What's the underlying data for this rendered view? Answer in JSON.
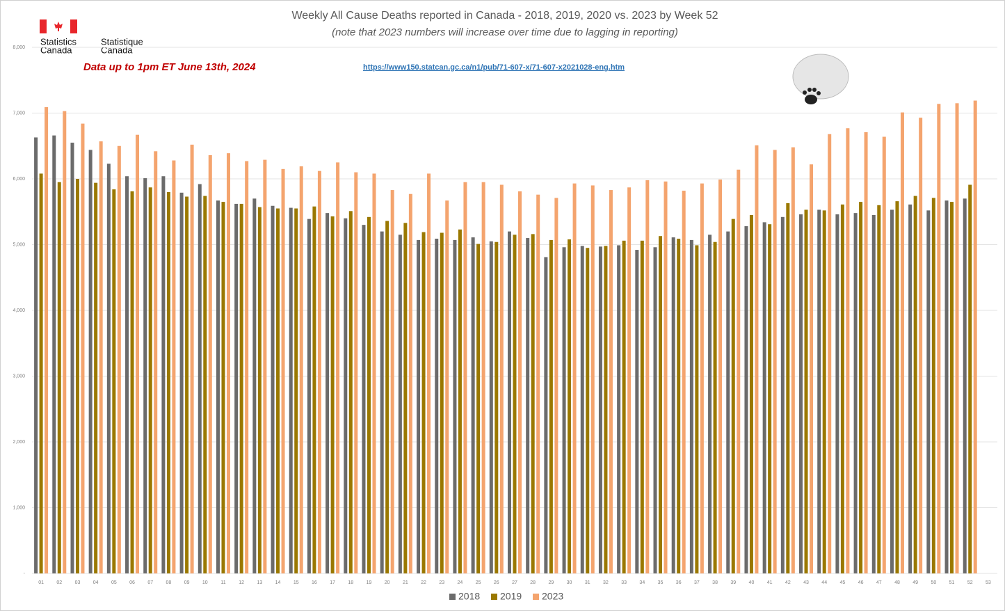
{
  "chart_data": {
    "type": "bar",
    "title": "Weekly All Cause Deaths reported in Canada - 2018, 2019, 2020 vs. 2023 by Week 52",
    "subtitle": "(note that 2023 numbers will increase over time due to lagging in reporting)",
    "annotation": "Data up to 1pm ET June 13th, 2024",
    "source_url": "https://www150.statcan.gc.ca/n1/pub/71-607-x/71-607-x2021028-eng.htm",
    "logo_text": [
      "Statistics",
      "Canada",
      "Statistique",
      "Canada"
    ],
    "categories": [
      "01",
      "02",
      "03",
      "04",
      "05",
      "06",
      "07",
      "08",
      "09",
      "10",
      "11",
      "12",
      "13",
      "14",
      "15",
      "16",
      "17",
      "18",
      "19",
      "20",
      "21",
      "22",
      "23",
      "24",
      "25",
      "26",
      "27",
      "28",
      "29",
      "30",
      "31",
      "32",
      "33",
      "34",
      "35",
      "36",
      "37",
      "38",
      "39",
      "40",
      "41",
      "42",
      "43",
      "44",
      "45",
      "46",
      "47",
      "48",
      "49",
      "50",
      "51",
      "52",
      "53"
    ],
    "series": [
      {
        "name": "2018",
        "color": "#6b6b6b",
        "values": [
          6630,
          6660,
          6550,
          6440,
          6230,
          6040,
          6010,
          6040,
          5790,
          5920,
          5670,
          5620,
          5700,
          5590,
          5560,
          5390,
          5480,
          5400,
          5300,
          5200,
          5150,
          5070,
          5090,
          5070,
          5110,
          5050,
          5200,
          5100,
          4810,
          4960,
          4980,
          4970,
          4990,
          4920,
          4960,
          5110,
          5070,
          5150,
          5200,
          5280,
          5340,
          5420,
          5460,
          5530,
          5460,
          5480,
          5450,
          5530,
          5610,
          5520,
          5670,
          5700,
          null
        ]
      },
      {
        "name": "2019",
        "color": "#9a7800",
        "values": [
          6080,
          5950,
          6000,
          5940,
          5840,
          5810,
          5870,
          5800,
          5730,
          5740,
          5650,
          5620,
          5570,
          5550,
          5550,
          5580,
          5430,
          5510,
          5420,
          5360,
          5330,
          5190,
          5180,
          5230,
          5010,
          5040,
          5150,
          5160,
          5070,
          5080,
          4950,
          4980,
          5060,
          5060,
          5130,
          5090,
          4990,
          5040,
          5390,
          5450,
          5310,
          5630,
          5530,
          5520,
          5610,
          5650,
          5600,
          5660,
          5740,
          5710,
          5650,
          5910,
          null
        ]
      },
      {
        "name": "2023",
        "color": "#f4a46e",
        "values": [
          7090,
          7030,
          6840,
          6570,
          6500,
          6670,
          6420,
          6280,
          6520,
          6360,
          6390,
          6270,
          6290,
          6150,
          6190,
          6120,
          6250,
          6100,
          6080,
          5830,
          5770,
          6080,
          5670,
          5950,
          5950,
          5910,
          5810,
          5760,
          5710,
          5930,
          5900,
          5830,
          5870,
          5980,
          5960,
          5820,
          5930,
          5990,
          6140,
          6510,
          6440,
          6480,
          6220,
          6680,
          6770,
          6710,
          6640,
          7010,
          6930,
          7140,
          7150,
          7190,
          null
        ]
      }
    ],
    "ylim": [
      0,
      8000
    ],
    "yticks": [
      {
        "value": 0,
        "label": "-"
      },
      {
        "value": 1000,
        "label": "1,000"
      },
      {
        "value": 2000,
        "label": "2,000"
      },
      {
        "value": 3000,
        "label": "3,000"
      },
      {
        "value": 4000,
        "label": "4,000"
      },
      {
        "value": 5000,
        "label": "5,000"
      },
      {
        "value": 6000,
        "label": "6,000"
      },
      {
        "value": 7000,
        "label": "7,000"
      },
      {
        "value": 8000,
        "label": "8,000"
      }
    ],
    "grid": true
  }
}
